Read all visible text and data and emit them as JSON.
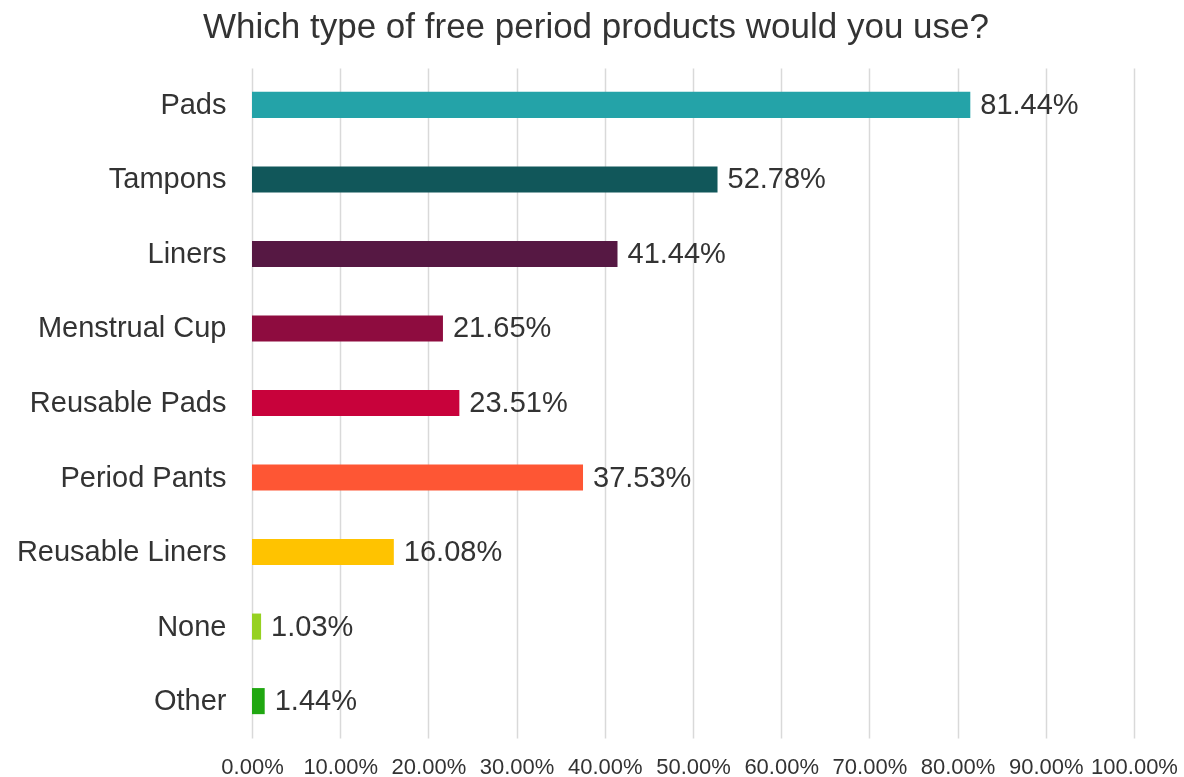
{
  "chart_data": {
    "type": "bar",
    "orientation": "horizontal",
    "title": "Which type of free period products would you use?",
    "categories": [
      "Pads",
      "Tampons",
      "Liners",
      "Menstrual Cup",
      "Reusable Pads",
      "Period Pants",
      "Reusable Liners",
      "None",
      "Other"
    ],
    "values": [
      81.44,
      52.78,
      41.44,
      21.65,
      23.51,
      37.53,
      16.08,
      1.03,
      1.44
    ],
    "colors": [
      "#24a3a8",
      "#11575a",
      "#561843",
      "#8e0c3f",
      "#c8023b",
      "#fe5634",
      "#ffc300",
      "#96d121",
      "#20a711"
    ],
    "value_labels": [
      "81.44%",
      "52.78%",
      "41.44%",
      "21.65%",
      "23.51%",
      "37.53%",
      "16.08%",
      "1.03%",
      "1.44%"
    ],
    "xlim": [
      0,
      100
    ],
    "xticks": [
      {
        "value": 0,
        "label": "0.00%"
      },
      {
        "value": 10,
        "label": "10.00%"
      },
      {
        "value": 20,
        "label": "20.00%"
      },
      {
        "value": 30,
        "label": "30.00%"
      },
      {
        "value": 40,
        "label": "40.00%"
      },
      {
        "value": 50,
        "label": "50.00%"
      },
      {
        "value": 60,
        "label": "60.00%"
      },
      {
        "value": 70,
        "label": "70.00%"
      },
      {
        "value": 80,
        "label": "80.00%"
      },
      {
        "value": 90,
        "label": "90.00%"
      },
      {
        "value": 100,
        "label": "100.00%"
      }
    ],
    "grid": "x",
    "legend": false
  }
}
